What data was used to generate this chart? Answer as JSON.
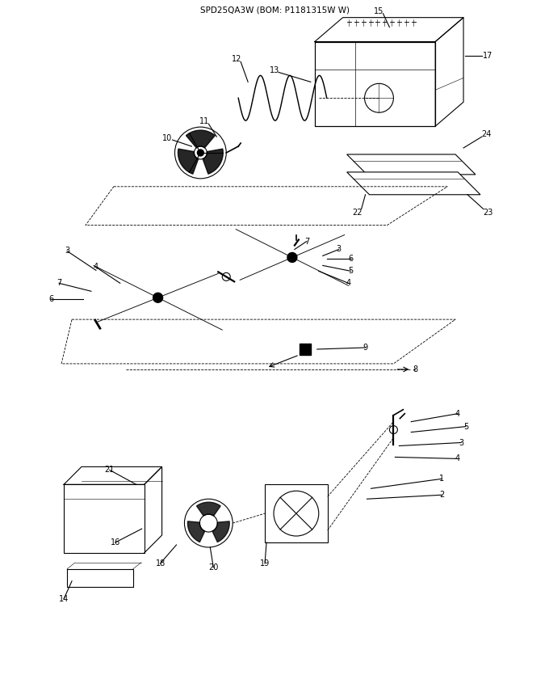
{
  "title": "SPD25QA3W (BOM: P1181315W W)",
  "bg_color": "#ffffff",
  "fig_width": 6.8,
  "fig_height": 8.56,
  "dpi": 100,
  "fs": 7.0,
  "title_fs": 7.5,
  "lw": 0.8
}
